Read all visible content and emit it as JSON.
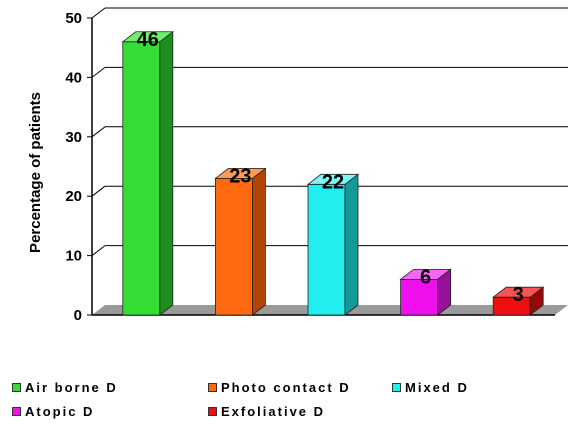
{
  "chart_data": {
    "type": "bar",
    "title": "",
    "xlabel": "",
    "ylabel": "Percentage of patients",
    "ylim": [
      0,
      50
    ],
    "yticks": [
      "0",
      "10",
      "20",
      "30",
      "40",
      "50"
    ],
    "grid": true,
    "legend_position": "bottom",
    "categories": [
      "Air borne D",
      "Photo contact D",
      "Mixed D",
      "Atopic D",
      "Exfoliative D"
    ],
    "values": [
      46,
      23,
      22,
      6,
      3
    ],
    "data_labels": [
      "46",
      "23",
      "22",
      "6",
      "3"
    ],
    "colors": [
      "#33DD33",
      "#FF6A10",
      "#22EEEE",
      "#EE11EE",
      "#EE1010"
    ],
    "side_colors": [
      "#1E8F1E",
      "#B34408",
      "#149999",
      "#991199",
      "#990808"
    ],
    "top_colors": [
      "#6EF06E",
      "#FF9A55",
      "#7FF7F7",
      "#F766F7",
      "#F75555"
    ]
  },
  "legend": {
    "items": [
      {
        "label": "Air borne D",
        "color": "#33DD33"
      },
      {
        "label": "Photo contact D",
        "color": "#FF6A10"
      },
      {
        "label": "Mixed D",
        "color": "#22EEEE"
      },
      {
        "label": "Atopic D",
        "color": "#EE11EE"
      },
      {
        "label": "Exfoliative D",
        "color": "#EE1010"
      }
    ]
  }
}
